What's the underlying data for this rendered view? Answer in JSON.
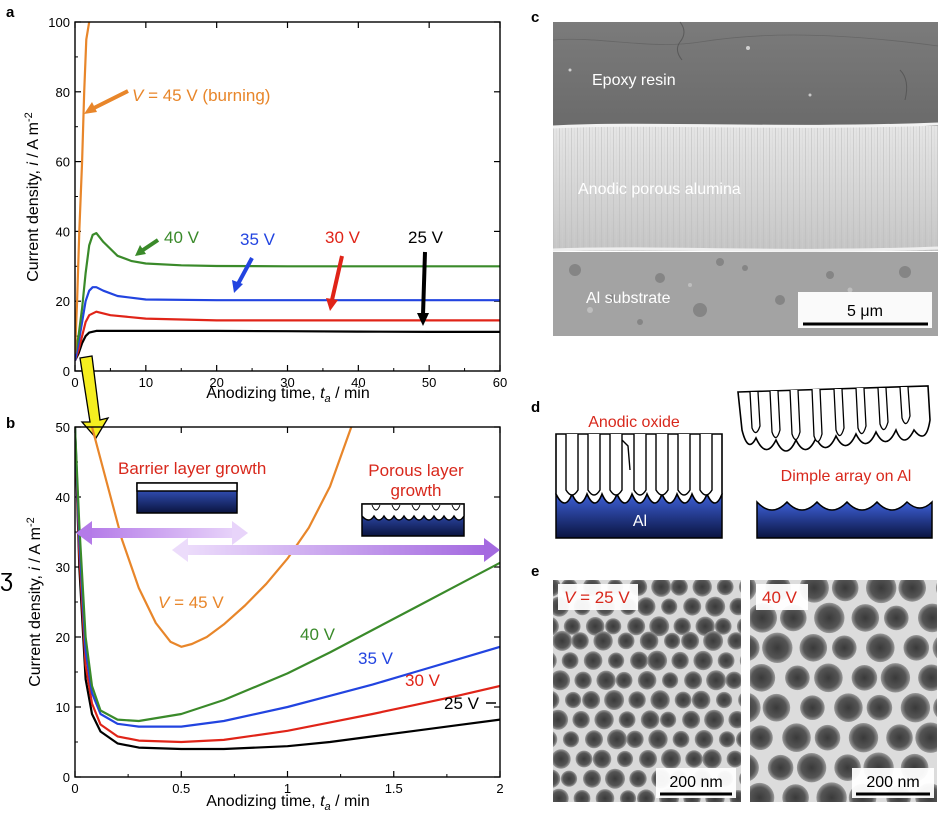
{
  "panels": {
    "a": "a",
    "b": "b",
    "c": "c",
    "d": "d",
    "e": "e"
  },
  "chart_data": [
    {
      "panel": "a",
      "type": "line",
      "xlabel": "Anodizing time, t_a / min",
      "xlabel_main": "Anodizing time, ",
      "xlabel_var": "t",
      "xlabel_sub": "a",
      "xlabel_unit": " / min",
      "ylabel_main": "Current density, ",
      "ylabel_var": "i",
      "ylabel_unit": " / A m",
      "ylabel_exp": "-2",
      "xlim": [
        0,
        60
      ],
      "ylim": [
        0,
        100
      ],
      "xticks": [
        0,
        10,
        20,
        30,
        40,
        50,
        60
      ],
      "yticks": [
        0,
        20,
        40,
        60,
        80,
        100
      ],
      "series": [
        {
          "name": "25 V",
          "color": "#000000",
          "x": [
            0,
            0.5,
            1,
            1.5,
            2,
            3,
            5,
            10,
            20,
            30,
            40,
            50,
            60
          ],
          "y": [
            3,
            5,
            8,
            10,
            11,
            11.5,
            11.5,
            11.5,
            11.5,
            11.4,
            11.3,
            11.2,
            11.2
          ]
        },
        {
          "name": "30 V",
          "color": "#e02418",
          "x": [
            0,
            0.5,
            1,
            1.5,
            2,
            3,
            5,
            10,
            20,
            30,
            40,
            50,
            60
          ],
          "y": [
            3,
            6,
            10,
            14,
            16,
            17,
            16,
            15,
            14.5,
            14.5,
            14.5,
            14.5,
            14.5
          ]
        },
        {
          "name": "35 V",
          "color": "#2244e0",
          "x": [
            0,
            0.5,
            1,
            1.5,
            2,
            2.5,
            3,
            4,
            6,
            10,
            20,
            30,
            40,
            50,
            60
          ],
          "y": [
            3,
            8,
            14,
            20,
            23,
            24,
            24,
            23,
            21.5,
            20.5,
            20.3,
            20.3,
            20.3,
            20.3,
            20.3
          ]
        },
        {
          "name": "40 V",
          "color": "#3a8a2a",
          "x": [
            0,
            0.5,
            1,
            1.5,
            2,
            2.5,
            3,
            4,
            6,
            8,
            10,
            15,
            20,
            30,
            40,
            50,
            60
          ],
          "y": [
            5,
            10,
            18,
            28,
            36,
            39,
            39.5,
            37,
            33,
            31.5,
            30.8,
            30.3,
            30.1,
            30,
            30,
            30,
            30
          ]
        },
        {
          "name": "45 V",
          "color": "#e8862a",
          "x": [
            0,
            0.3,
            0.6,
            1,
            1.3,
            1.6,
            2
          ],
          "y": [
            5,
            20,
            40,
            60,
            80,
            95,
            100
          ]
        }
      ],
      "annotations": [
        "V = 45 V (burning)",
        "40 V",
        "35 V",
        "30 V",
        "25 V"
      ]
    },
    {
      "panel": "b",
      "type": "line",
      "xlabel": "Anodizing time, t_a / min",
      "xlabel_main": "Anodizing time, ",
      "xlabel_var": "t",
      "xlabel_sub": "a",
      "xlabel_unit": " / min",
      "ylabel_main": "Current density, ",
      "ylabel_var": "i",
      "ylabel_unit": " / A m",
      "ylabel_exp": "-2",
      "xlim": [
        0,
        2
      ],
      "ylim": [
        0,
        50
      ],
      "xticks": [
        0,
        0.5,
        1,
        1.5,
        2
      ],
      "xticklabels": [
        "0",
        "0.5",
        "1",
        "1.5",
        "2"
      ],
      "yticks": [
        0,
        10,
        20,
        30,
        40,
        50
      ],
      "series": [
        {
          "name": "25 V",
          "color": "#000000",
          "x": [
            0,
            0.02,
            0.05,
            0.08,
            0.12,
            0.2,
            0.3,
            0.5,
            0.7,
            1.0,
            1.2,
            1.4,
            1.6,
            1.8,
            2.0
          ],
          "y": [
            50,
            30,
            14,
            9,
            6.5,
            4.8,
            4.2,
            4.0,
            4.0,
            4.4,
            5.0,
            5.8,
            6.6,
            7.4,
            8.2
          ]
        },
        {
          "name": "30 V",
          "color": "#e02418",
          "x": [
            0,
            0.02,
            0.05,
            0.08,
            0.12,
            0.2,
            0.3,
            0.5,
            0.7,
            1.0,
            1.2,
            1.4,
            1.6,
            1.8,
            2.0
          ],
          "y": [
            50,
            32,
            16,
            10.5,
            7.5,
            5.8,
            5.2,
            5.0,
            5.3,
            6.6,
            7.8,
            9.0,
            10.3,
            11.6,
            13
          ]
        },
        {
          "name": "35 V",
          "color": "#2244e0",
          "x": [
            0,
            0.02,
            0.05,
            0.08,
            0.12,
            0.2,
            0.3,
            0.5,
            0.7,
            1.0,
            1.2,
            1.4,
            1.6,
            1.8,
            2.0
          ],
          "y": [
            50,
            34,
            18,
            12,
            9,
            7.6,
            7.2,
            7.2,
            8.0,
            10.0,
            11.6,
            13.2,
            15.0,
            16.8,
            18.6
          ]
        },
        {
          "name": "40 V",
          "color": "#3a8a2a",
          "x": [
            0,
            0.02,
            0.05,
            0.08,
            0.12,
            0.2,
            0.3,
            0.5,
            0.7,
            1.0,
            1.2,
            1.4,
            1.6,
            1.8,
            2.0
          ],
          "y": [
            50,
            36,
            20,
            13,
            9.5,
            8.2,
            8.0,
            9.0,
            11.0,
            14.8,
            17.8,
            21.0,
            24.2,
            27.4,
            30.6
          ]
        },
        {
          "name": "45 V",
          "color": "#e8862a",
          "x": [
            0.08,
            0.15,
            0.22,
            0.3,
            0.38,
            0.45,
            0.5,
            0.55,
            0.62,
            0.7,
            0.8,
            0.9,
            1.0,
            1.1,
            1.2,
            1.3
          ],
          "y": [
            50,
            42,
            34,
            27,
            22,
            19.3,
            18.6,
            19.0,
            20.0,
            21.8,
            24.5,
            27.6,
            31.2,
            35.6,
            41.5,
            50
          ]
        }
      ],
      "annotations": [
        "V = 45 V",
        "40 V",
        "35 V",
        "30 V",
        "25 V",
        "Barrier layer growth",
        "Porous layer growth"
      ]
    }
  ],
  "labels_a": {
    "burning_var": "V",
    "burning_rest": " = 45 V (burning)",
    "v40": "40 V",
    "v35": "35 V",
    "v30": "30 V",
    "v25": "25 V"
  },
  "labels_b": {
    "v45_var": "V",
    "v45_rest": " = 45 V",
    "v40": "40 V",
    "v35": "35 V",
    "v30": "30 V",
    "v25": "25 V",
    "barrier": "Barrier layer growth",
    "porous_1": "Porous layer",
    "porous_2": "growth"
  },
  "panel_c": {
    "epoxy": "Epoxy resin",
    "alumina": "Anodic porous alumina",
    "substrate": "Al substrate",
    "scale": "5 μm"
  },
  "panel_d": {
    "oxide": "Anodic oxide",
    "al": "Al",
    "dimple": "Dimple array on Al"
  },
  "panel_e": {
    "left_var": "V",
    "left_rest": " = 25 V",
    "right": "40 V",
    "scale_left": "200 nm",
    "scale_right": "200 nm"
  },
  "colors": {
    "v25": "#000000",
    "v30": "#e02418",
    "v35": "#2244e0",
    "v40": "#3a8a2a",
    "v45": "#e8862a",
    "annotation_red": "#d8281c",
    "arrow_purple": "#c9a0f0",
    "yellow_arrow": "#f5ee20"
  }
}
